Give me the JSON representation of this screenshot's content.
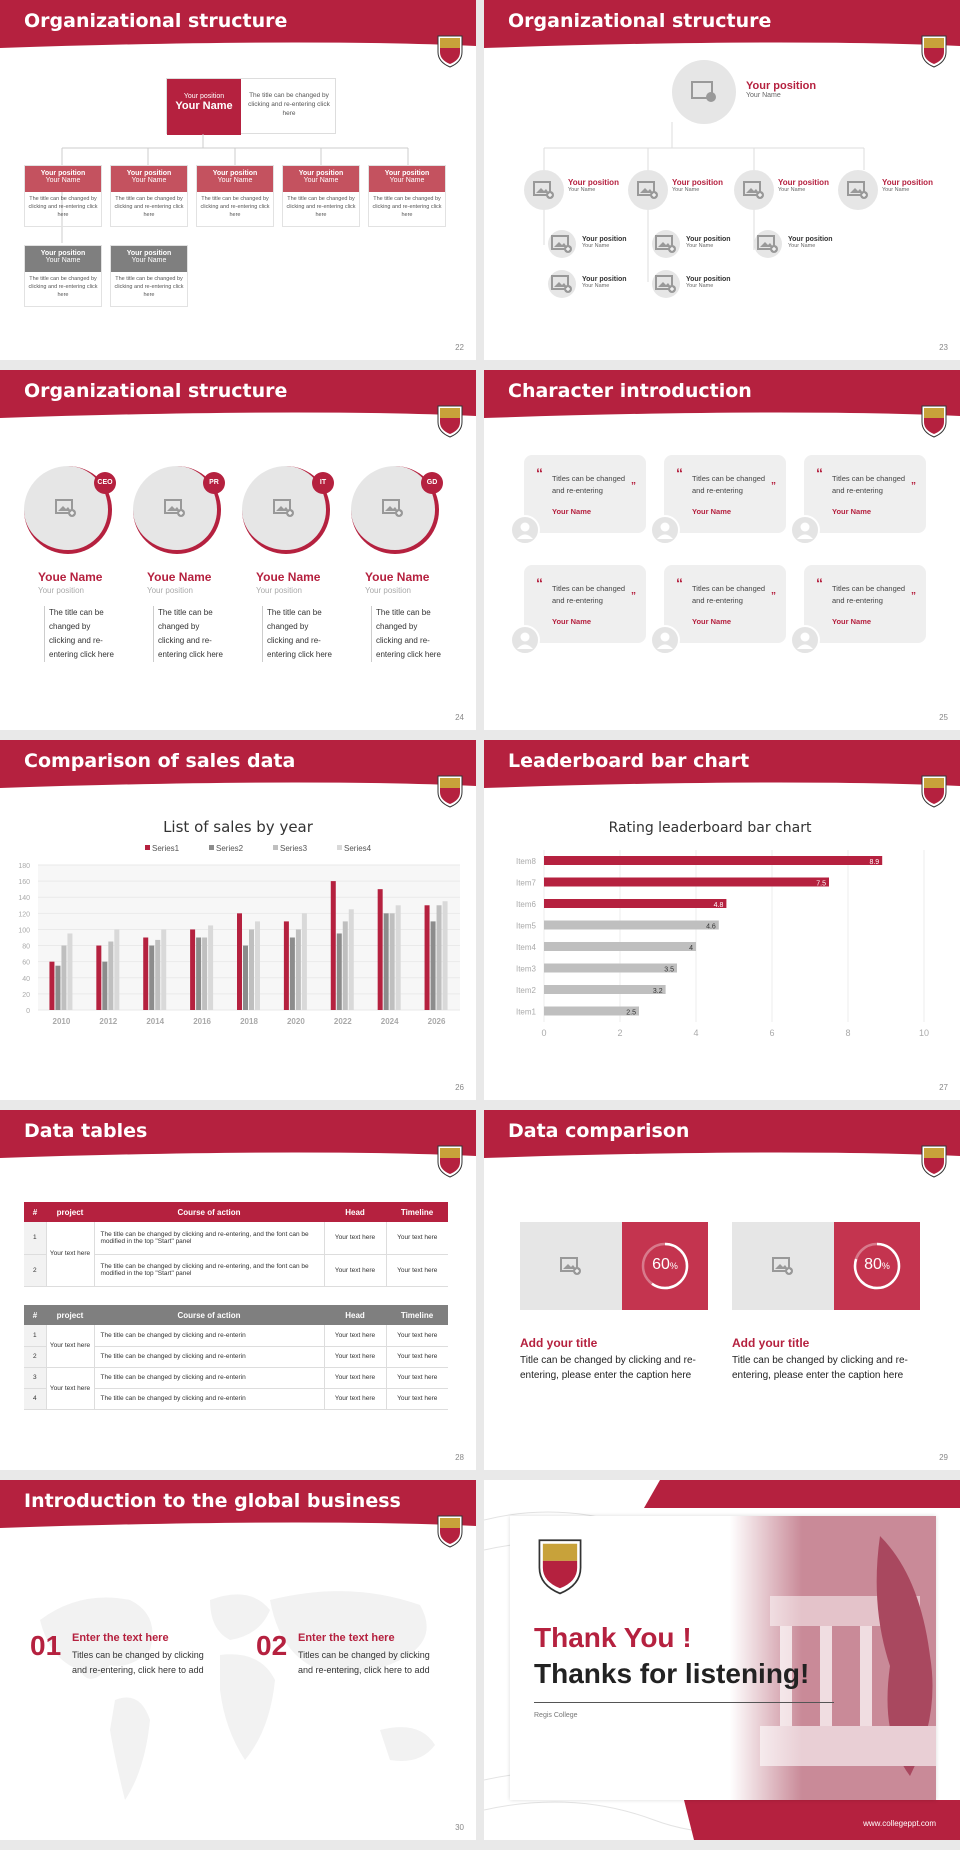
{
  "colors": {
    "accent": "#b5213f",
    "grey": "#7f7f7f",
    "light": "#efefef"
  },
  "s22": {
    "title": "Organizational structure",
    "page": "22",
    "top_pos": "Your position",
    "top_name": "Your Name",
    "top_desc": "The title can be changed by clicking and re-entering click here",
    "boxes": [
      {
        "pos": "Your position",
        "name": "Your Name",
        "desc": "The title can be changed by clicking and re-entering click here"
      },
      {
        "pos": "Your position",
        "name": "Your Name",
        "desc": "The title can be changed by clicking and re-entering click here"
      },
      {
        "pos": "Your position",
        "name": "Your Name",
        "desc": "The title can be changed by clicking and re-entering click here"
      },
      {
        "pos": "Your position",
        "name": "Your Name",
        "desc": "The title can be changed by clicking and re-entering click here"
      },
      {
        "pos": "Your position",
        "name": "Your Name",
        "desc": "The title can be changed by clicking and re-entering click here"
      },
      {
        "pos": "Your position",
        "name": "Your Name",
        "desc": "The title can be changed by clicking and re-entering click here"
      },
      {
        "pos": "Your position",
        "name": "Your Name",
        "desc": "The title can be changed by clicking and re-entering click here"
      }
    ]
  },
  "s23": {
    "title": "Organizational structure",
    "page": "23",
    "top_pos": "Your position",
    "top_name": "Your Name",
    "pos": "Your position",
    "name": "Your Name"
  },
  "s24": {
    "title": "Organizational structure",
    "page": "24",
    "cards": [
      {
        "badge": "CEO",
        "name": "Youe Name",
        "pos": "Your position",
        "desc": "The title can be changed by clicking and re-entering click here"
      },
      {
        "badge": "PR",
        "name": "Youe Name",
        "pos": "Your position",
        "desc": "The title can be changed by clicking and re-entering click here"
      },
      {
        "badge": "IT",
        "name": "Youe Name",
        "pos": "Your position",
        "desc": "The title can be changed by clicking and re-entering click here"
      },
      {
        "badge": "GD",
        "name": "Youe Name",
        "pos": "Your position",
        "desc": "The title can be changed by clicking and re-entering click here"
      }
    ]
  },
  "s25": {
    "title": "Character introduction",
    "page": "25",
    "quote": "Titles can be changed and re-entering",
    "name": "Your Name"
  },
  "s26": {
    "title": "Comparison of sales data",
    "page": "26"
  },
  "s27": {
    "title": "Leaderboard bar chart",
    "page": "27"
  },
  "s28": {
    "title": "Data tables",
    "page": "28",
    "t1_headers": [
      "#",
      "project",
      "Course of action",
      "Head",
      "Timeline"
    ],
    "t1_rows": [
      {
        "n": "1",
        "act": "The title can be changed by clicking and re-entering, and the font can be modified in the top \"Start\" panel",
        "head": "Your text here",
        "time": "Your text here"
      },
      {
        "n": "2",
        "act": "The title can be changed by clicking and re-entering, and the font can be modified in the top \"Start\" panel",
        "head": "Your text here",
        "time": "Your text here"
      }
    ],
    "t1_project": "Your text here",
    "t2_headers": [
      "#",
      "project",
      "Course of action",
      "Head",
      "Timeline"
    ],
    "t2_rows": [
      {
        "n": "1",
        "act": "The title can be changed by clicking and re-enterin",
        "head": "Your text here",
        "time": "Your text here"
      },
      {
        "n": "2",
        "act": "The title can be changed by clicking and re-enterin",
        "head": "Your text here",
        "time": "Your text here"
      },
      {
        "n": "3",
        "act": "The title can be changed by clicking and re-enterin",
        "head": "Your text here",
        "time": "Your text here"
      },
      {
        "n": "4",
        "act": "The title can be changed by clicking and re-enterin",
        "head": "Your text here",
        "time": "Your text here"
      }
    ],
    "t2_project_a": "Your text here",
    "t2_project_b": "Your text here"
  },
  "s29": {
    "title": "Data comparison",
    "page": "29",
    "items": [
      {
        "pct": "60",
        "unit": "%",
        "value": 0.6,
        "heading": "Add your title",
        "text": "Title can be changed by clicking and re-entering, please enter the caption here"
      },
      {
        "pct": "80",
        "unit": "%",
        "value": 0.8,
        "heading": "Add your title",
        "text": "Title can be changed by clicking and re-entering, please enter the caption here"
      }
    ]
  },
  "s30": {
    "title": "Introduction to the global business",
    "page": "30",
    "items": [
      {
        "num": "01",
        "heading": "Enter the text here",
        "text": "Titles can be changed by clicking and re-entering, click here to add"
      },
      {
        "num": "02",
        "heading": "Enter the text here",
        "text": "Titles can be changed by clicking and re-entering, click here to add"
      }
    ]
  },
  "s31": {
    "thanks1": "Thank You !",
    "thanks2": "Thanks for listening!",
    "college": "Regis College",
    "url": "www.collegeppt.com"
  },
  "chart_data": [
    {
      "type": "bar",
      "title": "List of sales by year",
      "categories": [
        "2010",
        "2012",
        "2014",
        "2016",
        "2018",
        "2020",
        "2022",
        "2024",
        "2026"
      ],
      "series": [
        {
          "name": "Series1",
          "values": [
            60,
            80,
            90,
            100,
            120,
            110,
            160,
            150,
            130
          ]
        },
        {
          "name": "Series2",
          "values": [
            55,
            60,
            80,
            90,
            80,
            90,
            95,
            120,
            110
          ]
        },
        {
          "name": "Series3",
          "values": [
            80,
            85,
            87,
            90,
            100,
            100,
            110,
            120,
            130
          ]
        },
        {
          "name": "Series4",
          "values": [
            95,
            100,
            100,
            105,
            110,
            120,
            125,
            130,
            135
          ]
        }
      ],
      "ylim": [
        0,
        180
      ],
      "yticks": [
        0,
        20,
        40,
        60,
        80,
        100,
        120,
        140,
        160,
        180
      ],
      "legend": "top"
    },
    {
      "type": "bar",
      "orientation": "horizontal",
      "title": "Rating leaderboard bar chart",
      "categories": [
        "Item8",
        "Item7",
        "Item6",
        "Item5",
        "Item4",
        "Item3",
        "Item2",
        "Item1"
      ],
      "values": [
        8.9,
        7.5,
        4.8,
        4.6,
        4,
        3.5,
        3.2,
        2.5
      ],
      "xlim": [
        0,
        10
      ],
      "xticks": [
        0,
        2,
        4,
        6,
        8,
        10
      ]
    }
  ]
}
